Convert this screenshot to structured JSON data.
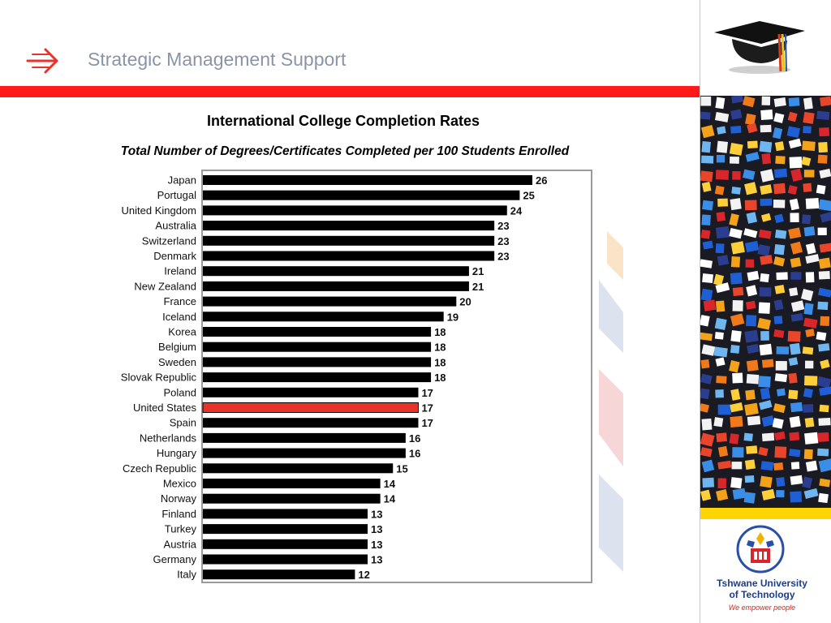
{
  "header": {
    "title": "Strategic Management Support"
  },
  "sidebar": {
    "university_name_line1": "Tshwane University",
    "university_name_line2": "of Technology",
    "slogan": "We empower people"
  },
  "colors": {
    "accent": "#ff1a1a",
    "highlight_bar": "#e8332a",
    "bar": "#000000",
    "yellow": "#ffd400"
  },
  "chart_data": {
    "type": "bar",
    "orientation": "horizontal",
    "title": "International College Completion Rates",
    "subtitle": "Total Number of Degrees/Certificates Completed per 100 Students Enrolled",
    "categories": [
      "Japan",
      "Portugal",
      "United Kingdom",
      "Australia",
      "Switzerland",
      "Denmark",
      "Ireland",
      "New Zealand",
      "France",
      "Iceland",
      "Korea",
      "Belgium",
      "Sweden",
      "Slovak Republic",
      "Poland",
      "United States",
      "Spain",
      "Netherlands",
      "Hungary",
      "Czech Republic",
      "Mexico",
      "Norway",
      "Finland",
      "Turkey",
      "Austria",
      "Germany",
      "Italy"
    ],
    "values": [
      26,
      25,
      24,
      23,
      23,
      23,
      21,
      21,
      20,
      19,
      18,
      18,
      18,
      18,
      17,
      17,
      17,
      16,
      16,
      15,
      14,
      14,
      13,
      13,
      13,
      13,
      12
    ],
    "highlight": "United States",
    "xlim": [
      0,
      30
    ],
    "grid": false,
    "legend": "none"
  }
}
